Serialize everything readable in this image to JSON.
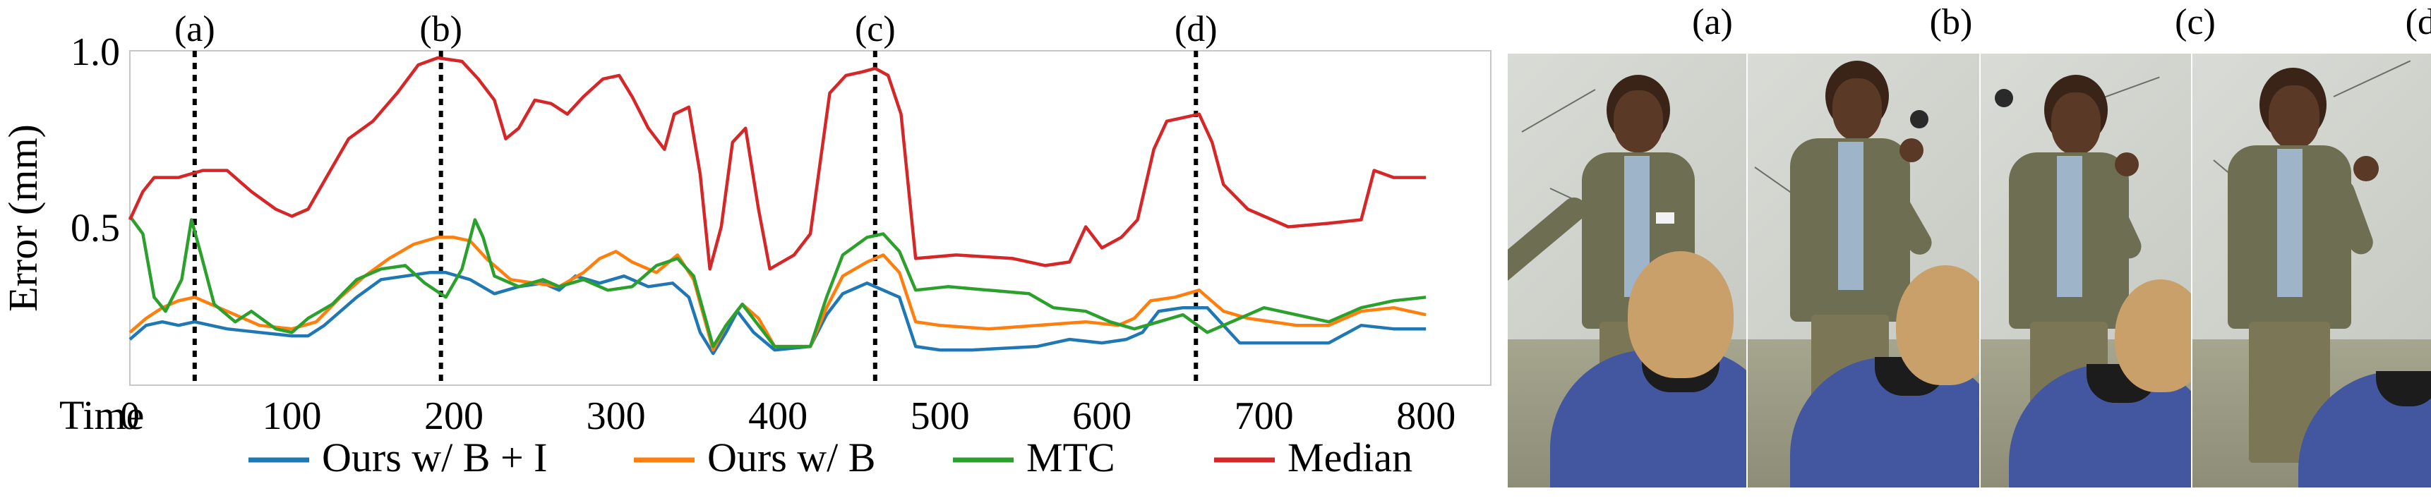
{
  "chart_data": {
    "type": "line",
    "ylabel": "Error (mm)",
    "xlabel": "Time",
    "x_ticks": [
      "0",
      "100",
      "200",
      "300",
      "400",
      "500",
      "600",
      "700",
      "800"
    ],
    "x_tick_values": [
      0,
      100,
      200,
      300,
      400,
      500,
      600,
      700,
      800
    ],
    "y_ticks": [
      "1.0",
      "0.5"
    ],
    "y_tick_values": [
      1.0,
      0.5
    ],
    "xlim": [
      0,
      840
    ],
    "ylim": [
      0.05,
      1.0
    ],
    "grid": false,
    "legend_position": "bottom",
    "markers": [
      {
        "label": "(a)",
        "x": 40
      },
      {
        "label": "(b)",
        "x": 192
      },
      {
        "label": "(c)",
        "x": 460
      },
      {
        "label": "(d)",
        "x": 658
      }
    ],
    "series": [
      {
        "name": "Ours w/ B + I",
        "color": "#1f77b4",
        "points": [
          [
            0,
            0.18
          ],
          [
            10,
            0.22
          ],
          [
            20,
            0.23
          ],
          [
            30,
            0.22
          ],
          [
            40,
            0.23
          ],
          [
            60,
            0.21
          ],
          [
            80,
            0.2
          ],
          [
            100,
            0.19
          ],
          [
            110,
            0.19
          ],
          [
            120,
            0.22
          ],
          [
            140,
            0.3
          ],
          [
            155,
            0.35
          ],
          [
            170,
            0.36
          ],
          [
            185,
            0.37
          ],
          [
            195,
            0.37
          ],
          [
            210,
            0.35
          ],
          [
            225,
            0.31
          ],
          [
            240,
            0.33
          ],
          [
            255,
            0.34
          ],
          [
            265,
            0.32
          ],
          [
            275,
            0.36
          ],
          [
            290,
            0.34
          ],
          [
            305,
            0.36
          ],
          [
            320,
            0.33
          ],
          [
            335,
            0.34
          ],
          [
            345,
            0.3
          ],
          [
            352,
            0.2
          ],
          [
            360,
            0.14
          ],
          [
            368,
            0.2
          ],
          [
            375,
            0.26
          ],
          [
            385,
            0.2
          ],
          [
            398,
            0.15
          ],
          [
            420,
            0.16
          ],
          [
            430,
            0.25
          ],
          [
            440,
            0.31
          ],
          [
            455,
            0.34
          ],
          [
            465,
            0.32
          ],
          [
            475,
            0.3
          ],
          [
            485,
            0.16
          ],
          [
            500,
            0.15
          ],
          [
            520,
            0.15
          ],
          [
            560,
            0.16
          ],
          [
            580,
            0.18
          ],
          [
            600,
            0.17
          ],
          [
            615,
            0.18
          ],
          [
            625,
            0.2
          ],
          [
            635,
            0.26
          ],
          [
            650,
            0.27
          ],
          [
            665,
            0.27
          ],
          [
            685,
            0.17
          ],
          [
            700,
            0.17
          ],
          [
            740,
            0.17
          ],
          [
            760,
            0.22
          ],
          [
            780,
            0.21
          ],
          [
            800,
            0.21
          ]
        ]
      },
      {
        "name": "Ours w/ B",
        "color": "#ff7f0e",
        "points": [
          [
            0,
            0.2
          ],
          [
            10,
            0.24
          ],
          [
            20,
            0.27
          ],
          [
            30,
            0.29
          ],
          [
            40,
            0.3
          ],
          [
            60,
            0.26
          ],
          [
            80,
            0.22
          ],
          [
            100,
            0.21
          ],
          [
            115,
            0.23
          ],
          [
            130,
            0.3
          ],
          [
            145,
            0.36
          ],
          [
            160,
            0.41
          ],
          [
            175,
            0.45
          ],
          [
            190,
            0.47
          ],
          [
            200,
            0.47
          ],
          [
            210,
            0.46
          ],
          [
            220,
            0.41
          ],
          [
            235,
            0.35
          ],
          [
            250,
            0.34
          ],
          [
            265,
            0.33
          ],
          [
            280,
            0.37
          ],
          [
            290,
            0.41
          ],
          [
            300,
            0.43
          ],
          [
            310,
            0.4
          ],
          [
            325,
            0.37
          ],
          [
            338,
            0.42
          ],
          [
            348,
            0.35
          ],
          [
            360,
            0.15
          ],
          [
            368,
            0.22
          ],
          [
            378,
            0.28
          ],
          [
            388,
            0.24
          ],
          [
            398,
            0.16
          ],
          [
            420,
            0.16
          ],
          [
            430,
            0.27
          ],
          [
            440,
            0.36
          ],
          [
            455,
            0.4
          ],
          [
            465,
            0.42
          ],
          [
            475,
            0.37
          ],
          [
            485,
            0.23
          ],
          [
            500,
            0.22
          ],
          [
            530,
            0.21
          ],
          [
            560,
            0.22
          ],
          [
            590,
            0.23
          ],
          [
            610,
            0.22
          ],
          [
            620,
            0.24
          ],
          [
            630,
            0.29
          ],
          [
            645,
            0.3
          ],
          [
            660,
            0.32
          ],
          [
            675,
            0.26
          ],
          [
            690,
            0.24
          ],
          [
            720,
            0.22
          ],
          [
            740,
            0.22
          ],
          [
            760,
            0.26
          ],
          [
            780,
            0.27
          ],
          [
            800,
            0.25
          ]
        ]
      },
      {
        "name": "MTC",
        "color": "#2ca02c",
        "points": [
          [
            0,
            0.53
          ],
          [
            8,
            0.48
          ],
          [
            15,
            0.3
          ],
          [
            22,
            0.26
          ],
          [
            32,
            0.35
          ],
          [
            38,
            0.52
          ],
          [
            44,
            0.42
          ],
          [
            52,
            0.28
          ],
          [
            65,
            0.23
          ],
          [
            75,
            0.26
          ],
          [
            90,
            0.21
          ],
          [
            100,
            0.2
          ],
          [
            110,
            0.24
          ],
          [
            125,
            0.28
          ],
          [
            140,
            0.35
          ],
          [
            155,
            0.38
          ],
          [
            170,
            0.39
          ],
          [
            182,
            0.34
          ],
          [
            195,
            0.3
          ],
          [
            205,
            0.38
          ],
          [
            213,
            0.52
          ],
          [
            218,
            0.47
          ],
          [
            225,
            0.36
          ],
          [
            240,
            0.33
          ],
          [
            255,
            0.35
          ],
          [
            265,
            0.33
          ],
          [
            280,
            0.35
          ],
          [
            295,
            0.32
          ],
          [
            310,
            0.33
          ],
          [
            325,
            0.39
          ],
          [
            338,
            0.41
          ],
          [
            348,
            0.36
          ],
          [
            360,
            0.16
          ],
          [
            368,
            0.22
          ],
          [
            378,
            0.28
          ],
          [
            388,
            0.22
          ],
          [
            398,
            0.16
          ],
          [
            420,
            0.16
          ],
          [
            430,
            0.3
          ],
          [
            440,
            0.42
          ],
          [
            455,
            0.47
          ],
          [
            465,
            0.48
          ],
          [
            475,
            0.43
          ],
          [
            485,
            0.32
          ],
          [
            505,
            0.33
          ],
          [
            530,
            0.32
          ],
          [
            555,
            0.31
          ],
          [
            570,
            0.27
          ],
          [
            590,
            0.26
          ],
          [
            605,
            0.23
          ],
          [
            620,
            0.21
          ],
          [
            635,
            0.23
          ],
          [
            650,
            0.25
          ],
          [
            665,
            0.2
          ],
          [
            680,
            0.23
          ],
          [
            700,
            0.27
          ],
          [
            720,
            0.25
          ],
          [
            740,
            0.23
          ],
          [
            760,
            0.27
          ],
          [
            780,
            0.29
          ],
          [
            800,
            0.3
          ]
        ]
      },
      {
        "name": "Median",
        "color": "#d62728",
        "points": [
          [
            0,
            0.52
          ],
          [
            8,
            0.6
          ],
          [
            15,
            0.64
          ],
          [
            30,
            0.64
          ],
          [
            45,
            0.66
          ],
          [
            60,
            0.66
          ],
          [
            75,
            0.6
          ],
          [
            90,
            0.55
          ],
          [
            100,
            0.53
          ],
          [
            110,
            0.55
          ],
          [
            120,
            0.63
          ],
          [
            135,
            0.75
          ],
          [
            150,
            0.8
          ],
          [
            165,
            0.88
          ],
          [
            178,
            0.96
          ],
          [
            190,
            0.98
          ],
          [
            205,
            0.97
          ],
          [
            215,
            0.92
          ],
          [
            225,
            0.86
          ],
          [
            232,
            0.75
          ],
          [
            240,
            0.78
          ],
          [
            250,
            0.86
          ],
          [
            260,
            0.85
          ],
          [
            270,
            0.82
          ],
          [
            280,
            0.87
          ],
          [
            292,
            0.92
          ],
          [
            302,
            0.93
          ],
          [
            310,
            0.87
          ],
          [
            320,
            0.78
          ],
          [
            330,
            0.72
          ],
          [
            336,
            0.82
          ],
          [
            345,
            0.84
          ],
          [
            352,
            0.65
          ],
          [
            358,
            0.38
          ],
          [
            365,
            0.5
          ],
          [
            372,
            0.74
          ],
          [
            380,
            0.78
          ],
          [
            388,
            0.55
          ],
          [
            395,
            0.38
          ],
          [
            410,
            0.42
          ],
          [
            420,
            0.48
          ],
          [
            432,
            0.88
          ],
          [
            442,
            0.93
          ],
          [
            452,
            0.94
          ],
          [
            460,
            0.95
          ],
          [
            468,
            0.93
          ],
          [
            476,
            0.82
          ],
          [
            485,
            0.41
          ],
          [
            510,
            0.42
          ],
          [
            545,
            0.41
          ],
          [
            565,
            0.39
          ],
          [
            580,
            0.4
          ],
          [
            590,
            0.5
          ],
          [
            600,
            0.44
          ],
          [
            612,
            0.47
          ],
          [
            622,
            0.52
          ],
          [
            632,
            0.72
          ],
          [
            640,
            0.8
          ],
          [
            650,
            0.81
          ],
          [
            660,
            0.82
          ],
          [
            668,
            0.74
          ],
          [
            675,
            0.62
          ],
          [
            690,
            0.55
          ],
          [
            715,
            0.5
          ],
          [
            740,
            0.51
          ],
          [
            760,
            0.52
          ],
          [
            768,
            0.66
          ],
          [
            780,
            0.64
          ],
          [
            800,
            0.64
          ]
        ]
      }
    ]
  },
  "photos": {
    "labels": [
      "(a)",
      "(b)",
      "(c)",
      "(d)"
    ]
  }
}
